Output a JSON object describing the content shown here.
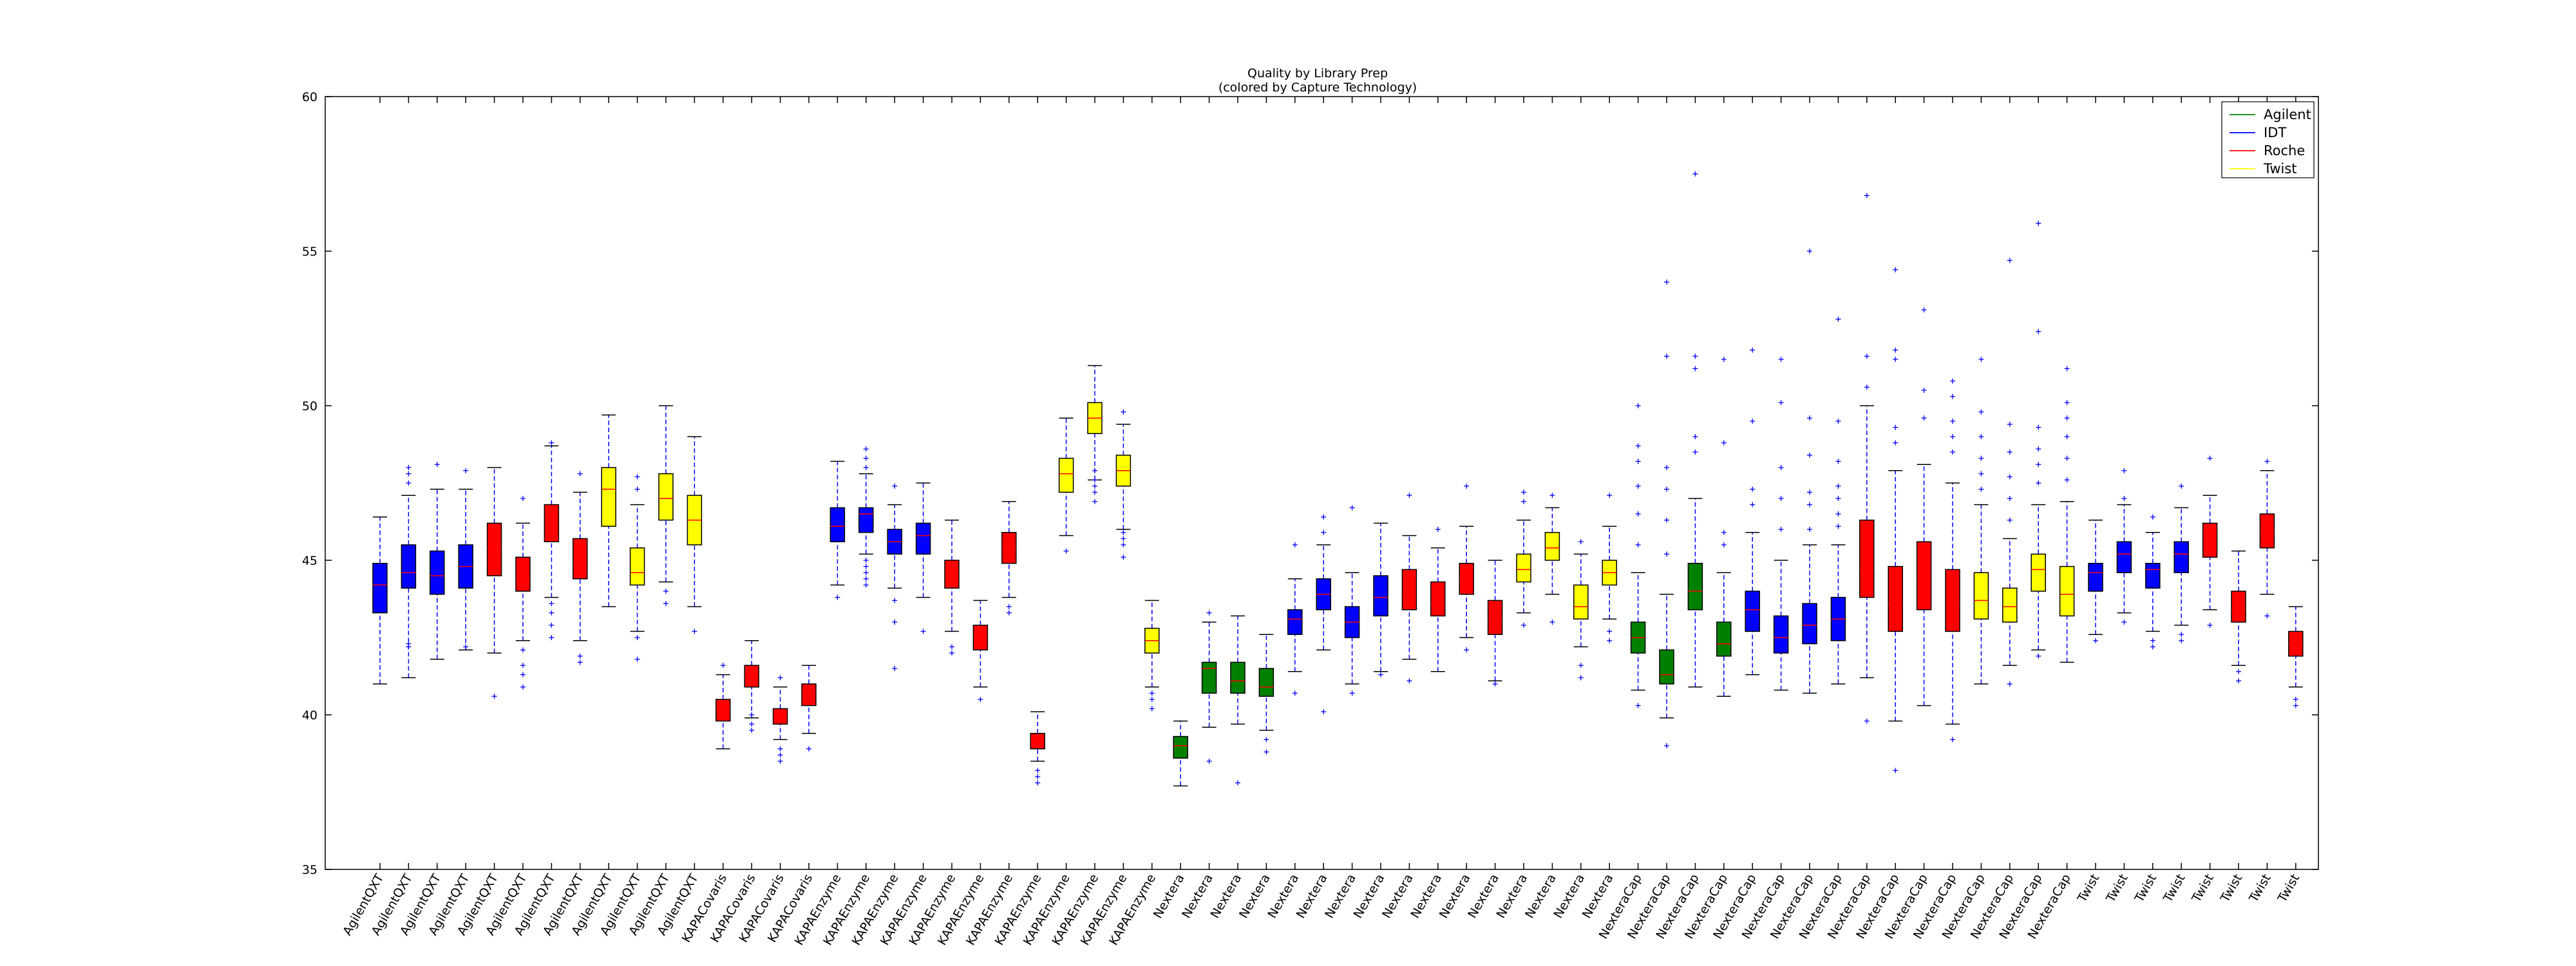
{
  "chart_data": {
    "type": "box",
    "title": "Quality by Library Prep",
    "subtitle": "(colored by Capture Technology)",
    "xlabel": "",
    "ylabel": "",
    "ylim": [
      35,
      60
    ],
    "yticks": [
      35,
      40,
      45,
      50,
      55,
      60
    ],
    "grid": false,
    "legend_position": "top-right",
    "legend": [
      {
        "name": "Agilent",
        "color": "#008000"
      },
      {
        "name": "IDT",
        "color": "#0000ff"
      },
      {
        "name": "Roche",
        "color": "#ff0000"
      },
      {
        "name": "Twist",
        "color": "#ffff00"
      }
    ],
    "colors": {
      "Agilent": "#008000",
      "IDT": "#0000ff",
      "Roche": "#ff0000",
      "Twist": "#ffff00"
    },
    "boxes": [
      {
        "label": "AgilentQXT",
        "capture": "IDT",
        "min": 41.0,
        "q1": 43.3,
        "median": 44.2,
        "q3": 44.9,
        "max": 46.4,
        "outliers": []
      },
      {
        "label": "AgilentQXT",
        "capture": "IDT",
        "min": 41.2,
        "q1": 44.1,
        "median": 44.6,
        "q3": 45.5,
        "max": 47.1,
        "outliers": [
          42.3,
          42.2,
          47.5,
          47.8,
          48.0
        ]
      },
      {
        "label": "AgilentQXT",
        "capture": "IDT",
        "min": 41.8,
        "q1": 43.9,
        "median": 44.5,
        "q3": 45.3,
        "max": 47.3,
        "outliers": [
          48.1
        ]
      },
      {
        "label": "AgilentQXT",
        "capture": "IDT",
        "min": 42.1,
        "q1": 44.1,
        "median": 44.8,
        "q3": 45.5,
        "max": 47.3,
        "outliers": [
          42.2,
          47.9
        ]
      },
      {
        "label": "AgilentQXT",
        "capture": "Roche",
        "min": 42.0,
        "q1": 44.5,
        "median": 45.4,
        "q3": 46.2,
        "max": 48.0,
        "outliers": [
          40.6
        ]
      },
      {
        "label": "AgilentQXT",
        "capture": "Roche",
        "min": 42.4,
        "q1": 44.0,
        "median": 44.3,
        "q3": 45.1,
        "max": 46.2,
        "outliers": [
          40.9,
          41.3,
          41.6,
          42.1,
          47.0
        ]
      },
      {
        "label": "AgilentQXT",
        "capture": "Roche",
        "min": 43.8,
        "q1": 45.6,
        "median": 45.7,
        "q3": 46.8,
        "max": 48.7,
        "outliers": [
          42.5,
          42.9,
          43.3,
          43.6,
          48.8
        ]
      },
      {
        "label": "AgilentQXT",
        "capture": "Roche",
        "min": 42.4,
        "q1": 44.4,
        "median": 45.0,
        "q3": 45.7,
        "max": 47.2,
        "outliers": [
          41.7,
          41.9,
          47.8
        ]
      },
      {
        "label": "AgilentQXT",
        "capture": "Twist",
        "min": 43.5,
        "q1": 46.1,
        "median": 47.3,
        "q3": 48.0,
        "max": 49.7,
        "outliers": []
      },
      {
        "label": "AgilentQXT",
        "capture": "Twist",
        "min": 42.7,
        "q1": 44.2,
        "median": 44.6,
        "q3": 45.4,
        "max": 46.8,
        "outliers": [
          41.8,
          42.5,
          47.3,
          47.7
        ]
      },
      {
        "label": "AgilentQXT",
        "capture": "Twist",
        "min": 44.3,
        "q1": 46.3,
        "median": 47.0,
        "q3": 47.8,
        "max": 50.0,
        "outliers": [
          43.6,
          44.0
        ]
      },
      {
        "label": "AgilentQXT",
        "capture": "Twist",
        "min": 43.5,
        "q1": 45.5,
        "median": 46.3,
        "q3": 47.1,
        "max": 49.0,
        "outliers": [
          42.7
        ]
      },
      {
        "label": "KAPACovaris",
        "capture": "Roche",
        "min": 38.9,
        "q1": 39.8,
        "median": 40.2,
        "q3": 40.5,
        "max": 41.3,
        "outliers": [
          41.6
        ]
      },
      {
        "label": "KAPACovaris",
        "capture": "Roche",
        "min": 39.9,
        "q1": 40.9,
        "median": 41.3,
        "q3": 41.6,
        "max": 42.4,
        "outliers": [
          39.5,
          39.7,
          40.0
        ]
      },
      {
        "label": "KAPACovaris",
        "capture": "Roche",
        "min": 39.2,
        "q1": 39.7,
        "median": 40.0,
        "q3": 40.2,
        "max": 40.9,
        "outliers": [
          38.5,
          38.7,
          38.9,
          41.2
        ]
      },
      {
        "label": "KAPACovaris",
        "capture": "Roche",
        "min": 39.4,
        "q1": 40.3,
        "median": 40.8,
        "q3": 41.0,
        "max": 41.6,
        "outliers": [
          38.9
        ]
      },
      {
        "label": "KAPAEnzyme",
        "capture": "IDT",
        "min": 44.2,
        "q1": 45.6,
        "median": 46.1,
        "q3": 46.7,
        "max": 48.2,
        "outliers": [
          43.8
        ]
      },
      {
        "label": "KAPAEnzyme",
        "capture": "IDT",
        "min": 45.2,
        "q1": 45.9,
        "median": 46.5,
        "q3": 46.7,
        "max": 47.8,
        "outliers": [
          44.2,
          44.4,
          44.6,
          44.8,
          45.0,
          48.0,
          48.3,
          48.6
        ]
      },
      {
        "label": "KAPAEnzyme",
        "capture": "IDT",
        "min": 44.1,
        "q1": 45.2,
        "median": 45.6,
        "q3": 46.0,
        "max": 46.8,
        "outliers": [
          41.5,
          43.0,
          43.7,
          47.4
        ]
      },
      {
        "label": "KAPAEnzyme",
        "capture": "IDT",
        "min": 43.8,
        "q1": 45.2,
        "median": 45.8,
        "q3": 46.2,
        "max": 47.5,
        "outliers": [
          42.7
        ]
      },
      {
        "label": "KAPAEnzyme",
        "capture": "Roche",
        "min": 42.7,
        "q1": 44.1,
        "median": 44.5,
        "q3": 45.0,
        "max": 46.3,
        "outliers": [
          42.0,
          42.2
        ]
      },
      {
        "label": "KAPAEnzyme",
        "capture": "Roche",
        "min": 40.9,
        "q1": 42.1,
        "median": 42.6,
        "q3": 42.9,
        "max": 43.7,
        "outliers": [
          40.5
        ]
      },
      {
        "label": "KAPAEnzyme",
        "capture": "Roche",
        "min": 43.8,
        "q1": 44.9,
        "median": 45.4,
        "q3": 45.9,
        "max": 46.9,
        "outliers": [
          43.3,
          43.5
        ]
      },
      {
        "label": "KAPAEnzyme",
        "capture": "Roche",
        "min": 38.5,
        "q1": 38.9,
        "median": 39.2,
        "q3": 39.4,
        "max": 40.1,
        "outliers": [
          37.8,
          38.0,
          38.2
        ]
      },
      {
        "label": "KAPAEnzyme",
        "capture": "Twist",
        "min": 45.8,
        "q1": 47.2,
        "median": 47.8,
        "q3": 48.3,
        "max": 49.6,
        "outliers": [
          45.3
        ]
      },
      {
        "label": "KAPAEnzyme",
        "capture": "Twist",
        "min": 47.6,
        "q1": 49.1,
        "median": 49.6,
        "q3": 50.1,
        "max": 51.3,
        "outliers": [
          46.9,
          47.2,
          47.4,
          47.6,
          47.9
        ]
      },
      {
        "label": "KAPAEnzyme",
        "capture": "Twist",
        "min": 46.0,
        "q1": 47.4,
        "median": 47.9,
        "q3": 48.4,
        "max": 49.4,
        "outliers": [
          45.1,
          45.5,
          45.7,
          45.9,
          49.8
        ]
      },
      {
        "label": "KAPAEnzyme",
        "capture": "Twist",
        "min": 40.9,
        "q1": 42.0,
        "median": 42.4,
        "q3": 42.8,
        "max": 43.7,
        "outliers": [
          40.2,
          40.5,
          40.7
        ]
      },
      {
        "label": "Nextera",
        "capture": "Agilent",
        "min": 37.7,
        "q1": 38.6,
        "median": 39.0,
        "q3": 39.3,
        "max": 39.8,
        "outliers": []
      },
      {
        "label": "Nextera",
        "capture": "Agilent",
        "min": 39.6,
        "q1": 40.7,
        "median": 41.5,
        "q3": 41.7,
        "max": 43.0,
        "outliers": [
          38.5,
          43.3
        ]
      },
      {
        "label": "Nextera",
        "capture": "Agilent",
        "min": 39.7,
        "q1": 40.7,
        "median": 41.1,
        "q3": 41.7,
        "max": 43.2,
        "outliers": [
          37.8
        ]
      },
      {
        "label": "Nextera",
        "capture": "Agilent",
        "min": 39.5,
        "q1": 40.6,
        "median": 40.9,
        "q3": 41.5,
        "max": 42.6,
        "outliers": [
          38.8,
          39.2
        ]
      },
      {
        "label": "Nextera",
        "capture": "IDT",
        "min": 41.4,
        "q1": 42.6,
        "median": 43.1,
        "q3": 43.4,
        "max": 44.4,
        "outliers": [
          40.7,
          45.5
        ]
      },
      {
        "label": "Nextera",
        "capture": "IDT",
        "min": 42.1,
        "q1": 43.4,
        "median": 43.9,
        "q3": 44.4,
        "max": 45.5,
        "outliers": [
          40.1,
          45.9,
          46.4
        ]
      },
      {
        "label": "Nextera",
        "capture": "IDT",
        "min": 41.0,
        "q1": 42.5,
        "median": 43.0,
        "q3": 43.5,
        "max": 44.6,
        "outliers": [
          40.7,
          46.7
        ]
      },
      {
        "label": "Nextera",
        "capture": "IDT",
        "min": 41.4,
        "q1": 43.2,
        "median": 43.8,
        "q3": 44.5,
        "max": 46.2,
        "outliers": [
          41.3
        ]
      },
      {
        "label": "Nextera",
        "capture": "Roche",
        "min": 41.8,
        "q1": 43.4,
        "median": 43.9,
        "q3": 44.7,
        "max": 45.8,
        "outliers": [
          41.1,
          47.1
        ]
      },
      {
        "label": "Nextera",
        "capture": "Roche",
        "min": 41.4,
        "q1": 43.2,
        "median": 43.6,
        "q3": 44.3,
        "max": 45.4,
        "outliers": [
          46.0
        ]
      },
      {
        "label": "Nextera",
        "capture": "Roche",
        "min": 42.5,
        "q1": 43.9,
        "median": 44.4,
        "q3": 44.9,
        "max": 46.1,
        "outliers": [
          42.1,
          47.4
        ]
      },
      {
        "label": "Nextera",
        "capture": "Roche",
        "min": 41.1,
        "q1": 42.6,
        "median": 43.0,
        "q3": 43.7,
        "max": 45.0,
        "outliers": [
          41.0
        ]
      },
      {
        "label": "Nextera",
        "capture": "Twist",
        "min": 43.3,
        "q1": 44.3,
        "median": 44.7,
        "q3": 45.2,
        "max": 46.3,
        "outliers": [
          42.9,
          46.9,
          47.2
        ]
      },
      {
        "label": "Nextera",
        "capture": "Twist",
        "min": 43.9,
        "q1": 45.0,
        "median": 45.4,
        "q3": 45.9,
        "max": 46.7,
        "outliers": [
          43.0,
          47.1
        ]
      },
      {
        "label": "Nextera",
        "capture": "Twist",
        "min": 42.2,
        "q1": 43.1,
        "median": 43.5,
        "q3": 44.2,
        "max": 45.2,
        "outliers": [
          41.2,
          41.6,
          45.6
        ]
      },
      {
        "label": "Nextera",
        "capture": "Twist",
        "min": 43.1,
        "q1": 44.2,
        "median": 44.6,
        "q3": 45.0,
        "max": 46.1,
        "outliers": [
          42.4,
          42.7,
          47.1
        ]
      },
      {
        "label": "NexteraCap",
        "capture": "Agilent",
        "min": 40.8,
        "q1": 42.0,
        "median": 42.5,
        "q3": 43.0,
        "max": 44.6,
        "outliers": [
          40.3,
          45.5,
          46.5,
          47.4,
          48.2,
          48.7,
          50.0
        ]
      },
      {
        "label": "NexteraCap",
        "capture": "Agilent",
        "min": 39.9,
        "q1": 41.0,
        "median": 41.3,
        "q3": 42.1,
        "max": 43.9,
        "outliers": [
          39.0,
          45.2,
          46.3,
          47.3,
          48.0,
          51.6,
          54.0
        ]
      },
      {
        "label": "NexteraCap",
        "capture": "Agilent",
        "min": 40.9,
        "q1": 43.4,
        "median": 44.0,
        "q3": 44.9,
        "max": 47.0,
        "outliers": [
          48.5,
          49.0,
          51.2,
          51.6,
          57.5
        ]
      },
      {
        "label": "NexteraCap",
        "capture": "Agilent",
        "min": 40.6,
        "q1": 41.9,
        "median": 42.3,
        "q3": 43.0,
        "max": 44.6,
        "outliers": [
          45.5,
          45.9,
          48.8,
          51.5
        ]
      },
      {
        "label": "NexteraCap",
        "capture": "IDT",
        "min": 41.3,
        "q1": 42.7,
        "median": 43.4,
        "q3": 44.0,
        "max": 45.9,
        "outliers": [
          46.8,
          47.3,
          49.5,
          51.8
        ]
      },
      {
        "label": "NexteraCap",
        "capture": "IDT",
        "min": 40.8,
        "q1": 42.0,
        "median": 42.5,
        "q3": 43.2,
        "max": 45.0,
        "outliers": [
          46.0,
          47.0,
          48.0,
          50.1,
          51.5
        ]
      },
      {
        "label": "NexteraCap",
        "capture": "IDT",
        "min": 40.7,
        "q1": 42.3,
        "median": 42.9,
        "q3": 43.6,
        "max": 45.5,
        "outliers": [
          46.0,
          46.8,
          47.2,
          48.4,
          49.6,
          55.0
        ]
      },
      {
        "label": "NexteraCap",
        "capture": "IDT",
        "min": 41.0,
        "q1": 42.4,
        "median": 43.1,
        "q3": 43.8,
        "max": 45.5,
        "outliers": [
          46.1,
          46.5,
          47.0,
          47.4,
          48.2,
          49.5,
          52.8
        ]
      },
      {
        "label": "NexteraCap",
        "capture": "Roche",
        "min": 41.2,
        "q1": 43.8,
        "median": 44.7,
        "q3": 46.3,
        "max": 50.0,
        "outliers": [
          39.8,
          50.6,
          51.6,
          56.8
        ]
      },
      {
        "label": "NexteraCap",
        "capture": "Roche",
        "min": 39.8,
        "q1": 42.7,
        "median": 43.6,
        "q3": 44.8,
        "max": 47.9,
        "outliers": [
          38.2,
          48.8,
          49.3,
          51.5,
          51.8,
          54.4
        ]
      },
      {
        "label": "NexteraCap",
        "capture": "Roche",
        "min": 40.3,
        "q1": 43.4,
        "median": 44.3,
        "q3": 45.6,
        "max": 48.1,
        "outliers": [
          49.6,
          50.5,
          53.1
        ]
      },
      {
        "label": "NexteraCap",
        "capture": "Roche",
        "min": 39.7,
        "q1": 42.7,
        "median": 43.7,
        "q3": 44.7,
        "max": 47.5,
        "outliers": [
          39.2,
          48.5,
          49.0,
          49.5,
          50.3,
          50.8
        ]
      },
      {
        "label": "NexteraCap",
        "capture": "Twist",
        "min": 41.0,
        "q1": 43.1,
        "median": 43.7,
        "q3": 44.6,
        "max": 46.8,
        "outliers": [
          47.3,
          47.8,
          48.3,
          49.0,
          49.8,
          51.5
        ]
      },
      {
        "label": "NexteraCap",
        "capture": "Twist",
        "min": 41.6,
        "q1": 43.0,
        "median": 43.5,
        "q3": 44.1,
        "max": 45.7,
        "outliers": [
          41.0,
          46.3,
          47.0,
          47.7,
          48.5,
          49.4,
          54.7
        ]
      },
      {
        "label": "NexteraCap",
        "capture": "Twist",
        "min": 42.1,
        "q1": 44.0,
        "median": 44.7,
        "q3": 45.2,
        "max": 46.8,
        "outliers": [
          41.9,
          47.5,
          48.1,
          48.6,
          49.3,
          52.4,
          55.9
        ]
      },
      {
        "label": "NexteraCap",
        "capture": "Twist",
        "min": 41.7,
        "q1": 43.2,
        "median": 43.9,
        "q3": 44.8,
        "max": 46.9,
        "outliers": [
          47.6,
          48.3,
          49.0,
          49.6,
          50.1,
          51.2
        ]
      },
      {
        "label": "Twist",
        "capture": "IDT",
        "min": 42.6,
        "q1": 44.0,
        "median": 44.6,
        "q3": 44.9,
        "max": 46.3,
        "outliers": [
          42.4
        ]
      },
      {
        "label": "Twist",
        "capture": "IDT",
        "min": 43.3,
        "q1": 44.6,
        "median": 45.2,
        "q3": 45.6,
        "max": 46.8,
        "outliers": [
          43.0,
          47.0,
          47.9
        ]
      },
      {
        "label": "Twist",
        "capture": "IDT",
        "min": 42.7,
        "q1": 44.1,
        "median": 44.7,
        "q3": 44.9,
        "max": 45.9,
        "outliers": [
          42.2,
          42.4,
          46.4
        ]
      },
      {
        "label": "Twist",
        "capture": "IDT",
        "min": 42.9,
        "q1": 44.6,
        "median": 45.2,
        "q3": 45.6,
        "max": 46.7,
        "outliers": [
          42.4,
          42.6,
          47.4
        ]
      },
      {
        "label": "Twist",
        "capture": "Roche",
        "min": 43.4,
        "q1": 45.1,
        "median": 45.8,
        "q3": 46.2,
        "max": 47.1,
        "outliers": [
          42.9,
          48.3
        ]
      },
      {
        "label": "Twist",
        "capture": "Roche",
        "min": 41.6,
        "q1": 43.0,
        "median": 43.4,
        "q3": 44.0,
        "max": 45.3,
        "outliers": [
          41.1,
          41.4
        ]
      },
      {
        "label": "Twist",
        "capture": "Roche",
        "min": 43.9,
        "q1": 45.4,
        "median": 45.9,
        "q3": 46.5,
        "max": 47.9,
        "outliers": [
          43.2,
          48.2
        ]
      },
      {
        "label": "Twist",
        "capture": "Roche",
        "min": 40.9,
        "q1": 41.9,
        "median": 42.3,
        "q3": 42.7,
        "max": 43.5,
        "outliers": [
          40.3,
          40.5
        ]
      }
    ]
  }
}
